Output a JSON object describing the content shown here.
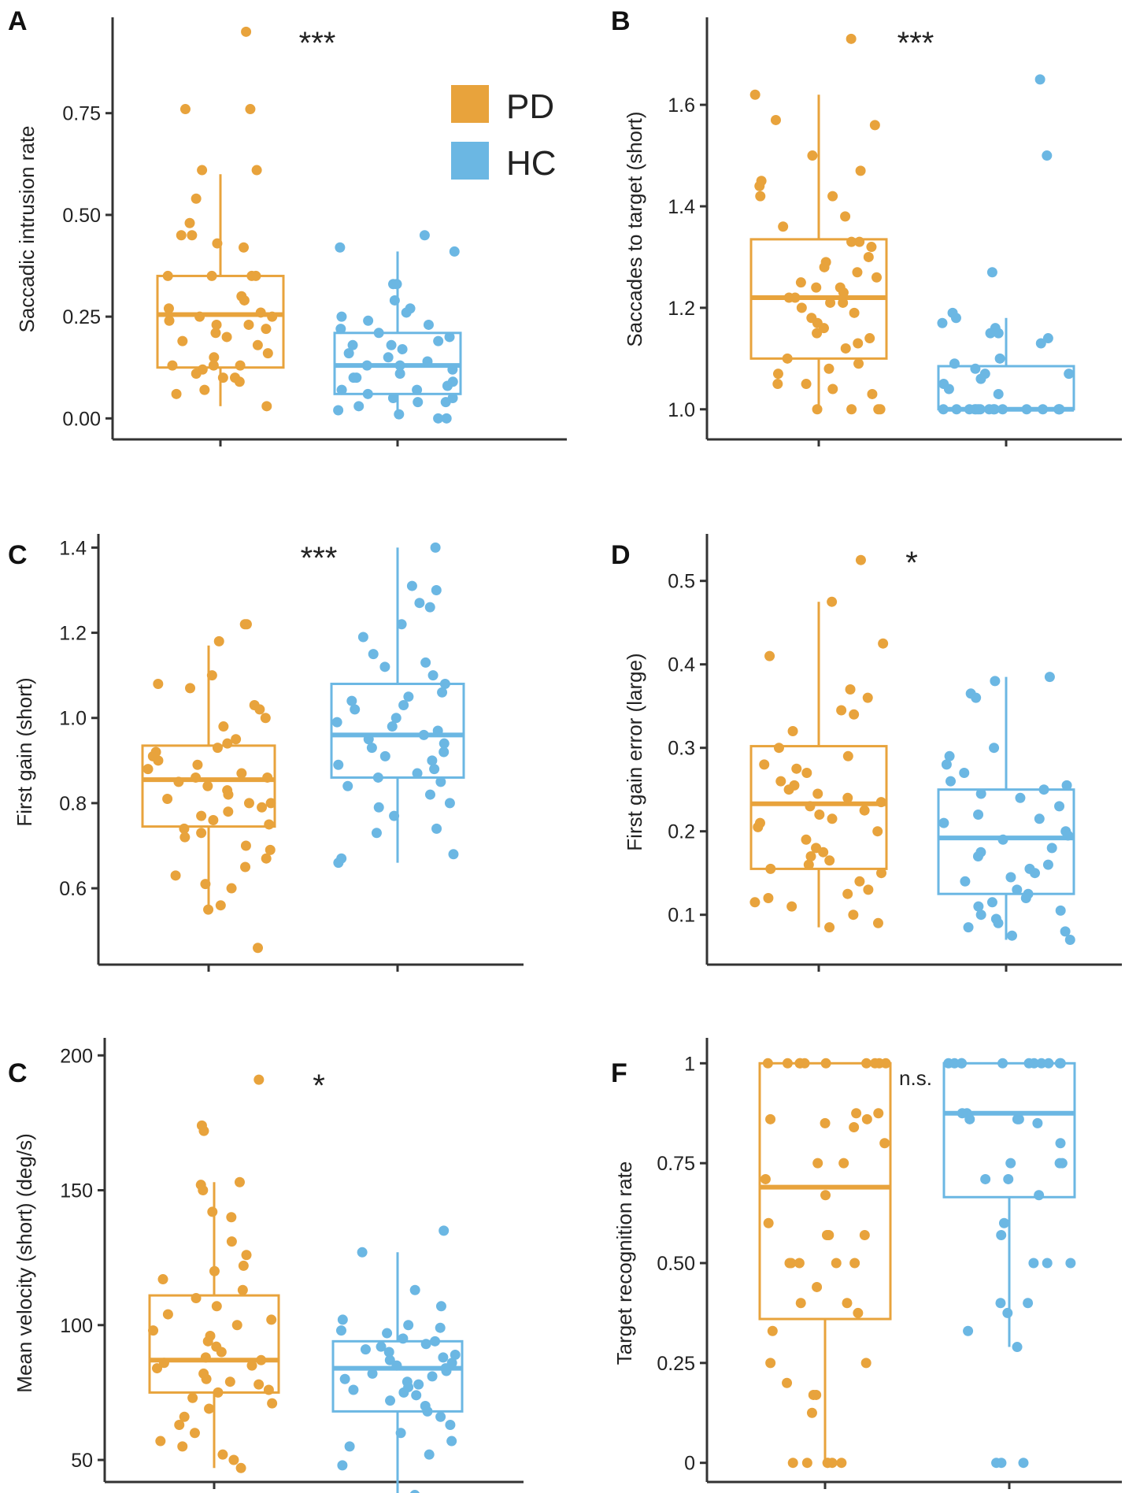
{
  "figure": {
    "legend": [
      {
        "label": "PD",
        "color": "#E8A33C"
      },
      {
        "label": "HC",
        "color": "#6BB7E3"
      }
    ]
  },
  "chart_data": [
    {
      "panel": "A",
      "type": "box",
      "ylabel": "Saccadic intrusion rate",
      "yticks": [
        0.0,
        0.25,
        0.5,
        0.75
      ],
      "ytick_labels": [
        "0.00",
        "0.25",
        "0.50",
        "0.75"
      ],
      "ylim": [
        -0.04,
        0.97
      ],
      "significance": "***",
      "groups": [
        {
          "name": "PD",
          "color": "#E8A33C",
          "box": {
            "q1": 0.125,
            "median": 0.255,
            "q3": 0.35,
            "whisker_low": 0.03,
            "whisker_high": 0.6
          },
          "points": [
            0.95,
            0.76,
            0.76,
            0.61,
            0.61,
            0.54,
            0.48,
            0.45,
            0.45,
            0.43,
            0.42,
            0.35,
            0.35,
            0.35,
            0.35,
            0.3,
            0.29,
            0.27,
            0.26,
            0.25,
            0.25,
            0.24,
            0.23,
            0.23,
            0.22,
            0.21,
            0.2,
            0.19,
            0.18,
            0.16,
            0.15,
            0.13,
            0.13,
            0.13,
            0.12,
            0.11,
            0.1,
            0.1,
            0.09,
            0.07,
            0.06,
            0.03
          ]
        },
        {
          "name": "HC",
          "color": "#6BB7E3",
          "box": {
            "q1": 0.06,
            "median": 0.13,
            "q3": 0.21,
            "whisker_low": 0.0,
            "whisker_high": 0.41
          },
          "points": [
            0.45,
            0.42,
            0.41,
            0.33,
            0.33,
            0.29,
            0.27,
            0.26,
            0.25,
            0.24,
            0.23,
            0.22,
            0.21,
            0.2,
            0.19,
            0.18,
            0.18,
            0.17,
            0.16,
            0.15,
            0.14,
            0.13,
            0.13,
            0.12,
            0.11,
            0.1,
            0.1,
            0.09,
            0.08,
            0.07,
            0.07,
            0.06,
            0.05,
            0.05,
            0.04,
            0.04,
            0.03,
            0.02,
            0.01,
            0.0,
            0.0
          ]
        }
      ]
    },
    {
      "panel": "B",
      "type": "box",
      "ylabel": "Saccades to target (short)",
      "yticks": [
        1.0,
        1.2,
        1.4,
        1.6
      ],
      "ytick_labels": [
        "1.0",
        "1.2",
        "1.4",
        "1.6"
      ],
      "ylim": [
        0.95,
        1.76
      ],
      "significance": "***",
      "groups": [
        {
          "name": "PD",
          "color": "#E8A33C",
          "box": {
            "q1": 1.1,
            "median": 1.22,
            "q3": 1.335,
            "whisker_low": 1.0,
            "whisker_high": 1.62
          },
          "points": [
            1.73,
            1.62,
            1.57,
            1.56,
            1.5,
            1.47,
            1.45,
            1.44,
            1.42,
            1.42,
            1.38,
            1.36,
            1.33,
            1.33,
            1.32,
            1.3,
            1.29,
            1.28,
            1.27,
            1.26,
            1.25,
            1.24,
            1.24,
            1.23,
            1.22,
            1.22,
            1.21,
            1.21,
            1.2,
            1.19,
            1.18,
            1.17,
            1.16,
            1.15,
            1.14,
            1.13,
            1.12,
            1.1,
            1.09,
            1.08,
            1.07,
            1.05,
            1.05,
            1.04,
            1.03,
            1.0,
            1.0,
            1.0,
            1.0
          ]
        },
        {
          "name": "HC",
          "color": "#6BB7E3",
          "box": {
            "q1": 1.0,
            "median": 1.0,
            "q3": 1.085,
            "whisker_low": 1.0,
            "whisker_high": 1.18
          },
          "points": [
            1.65,
            1.5,
            1.27,
            1.19,
            1.18,
            1.17,
            1.16,
            1.15,
            1.15,
            1.14,
            1.13,
            1.1,
            1.09,
            1.08,
            1.07,
            1.07,
            1.06,
            1.05,
            1.04,
            1.03,
            1.0,
            1.0,
            1.0,
            1.0,
            1.0,
            1.0,
            1.0,
            1.0,
            1.0,
            1.0,
            1.0,
            1.0,
            1.0,
            1.0,
            1.0,
            1.0
          ]
        }
      ]
    },
    {
      "panel": "C",
      "type": "box",
      "ylabel": "First gain (short)",
      "yticks": [
        0.6,
        0.8,
        1.0,
        1.2,
        1.4
      ],
      "ytick_labels": [
        "0.6",
        "0.8",
        "1.0",
        "1.2",
        "1.4"
      ],
      "ylim": [
        0.43,
        1.41
      ],
      "significance": "***",
      "groups": [
        {
          "name": "PD",
          "color": "#E8A33C",
          "box": {
            "q1": 0.745,
            "median": 0.855,
            "q3": 0.935,
            "whisker_low": 0.55,
            "whisker_high": 1.17
          },
          "points": [
            1.22,
            1.22,
            1.18,
            1.1,
            1.08,
            1.07,
            1.03,
            1.02,
            1.0,
            0.98,
            0.95,
            0.94,
            0.93,
            0.92,
            0.91,
            0.9,
            0.89,
            0.88,
            0.87,
            0.86,
            0.86,
            0.85,
            0.84,
            0.83,
            0.82,
            0.81,
            0.8,
            0.8,
            0.79,
            0.78,
            0.77,
            0.76,
            0.75,
            0.74,
            0.73,
            0.72,
            0.7,
            0.69,
            0.67,
            0.65,
            0.63,
            0.61,
            0.6,
            0.56,
            0.55,
            0.46
          ]
        },
        {
          "name": "HC",
          "color": "#6BB7E3",
          "box": {
            "q1": 0.86,
            "median": 0.96,
            "q3": 1.08,
            "whisker_low": 0.66,
            "whisker_high": 1.4
          },
          "points": [
            1.4,
            1.31,
            1.3,
            1.27,
            1.26,
            1.22,
            1.19,
            1.15,
            1.13,
            1.12,
            1.1,
            1.08,
            1.06,
            1.05,
            1.04,
            1.03,
            1.02,
            1.0,
            0.99,
            0.98,
            0.97,
            0.96,
            0.95,
            0.94,
            0.93,
            0.92,
            0.91,
            0.9,
            0.89,
            0.88,
            0.87,
            0.86,
            0.85,
            0.84,
            0.82,
            0.8,
            0.79,
            0.77,
            0.74,
            0.73,
            0.68,
            0.67,
            0.66
          ]
        }
      ]
    },
    {
      "panel": "D",
      "type": "box",
      "ylabel": "First gain error (large)",
      "yticks": [
        0.1,
        0.2,
        0.3,
        0.4,
        0.5
      ],
      "ytick_labels": [
        "0.1",
        "0.2",
        "0.3",
        "0.4",
        "0.5"
      ],
      "ylim": [
        0.045,
        0.545
      ],
      "significance": "*",
      "groups": [
        {
          "name": "PD",
          "color": "#E8A33C",
          "box": {
            "q1": 0.155,
            "median": 0.233,
            "q3": 0.302,
            "whisker_low": 0.085,
            "whisker_high": 0.475
          },
          "points": [
            0.525,
            0.475,
            0.425,
            0.41,
            0.37,
            0.36,
            0.345,
            0.34,
            0.32,
            0.3,
            0.29,
            0.28,
            0.275,
            0.27,
            0.26,
            0.255,
            0.25,
            0.245,
            0.24,
            0.235,
            0.23,
            0.225,
            0.22,
            0.215,
            0.21,
            0.205,
            0.2,
            0.19,
            0.18,
            0.175,
            0.17,
            0.165,
            0.16,
            0.155,
            0.15,
            0.14,
            0.13,
            0.125,
            0.12,
            0.115,
            0.11,
            0.1,
            0.09,
            0.085
          ]
        },
        {
          "name": "HC",
          "color": "#6BB7E3",
          "box": {
            "q1": 0.125,
            "median": 0.192,
            "q3": 0.25,
            "whisker_low": 0.07,
            "whisker_high": 0.385
          },
          "points": [
            0.385,
            0.38,
            0.365,
            0.36,
            0.3,
            0.29,
            0.28,
            0.27,
            0.26,
            0.255,
            0.25,
            0.245,
            0.24,
            0.23,
            0.22,
            0.215,
            0.21,
            0.2,
            0.195,
            0.19,
            0.18,
            0.175,
            0.17,
            0.16,
            0.155,
            0.15,
            0.145,
            0.14,
            0.13,
            0.125,
            0.12,
            0.115,
            0.11,
            0.105,
            0.1,
            0.095,
            0.09,
            0.085,
            0.08,
            0.075,
            0.07
          ]
        }
      ]
    },
    {
      "panel": "C",
      "type": "box",
      "ylabel": "Mean velocity (short) (deg/s)",
      "yticks": [
        50,
        100,
        150,
        200
      ],
      "ytick_labels": [
        "50",
        "100",
        "150",
        "200"
      ],
      "ylim": [
        43,
        203
      ],
      "significance": "*",
      "groups": [
        {
          "name": "PD",
          "color": "#E8A33C",
          "box": {
            "q1": 75,
            "median": 87,
            "q3": 111,
            "whisker_low": 47,
            "whisker_high": 153
          },
          "points": [
            191,
            174,
            172,
            153,
            152,
            150,
            142,
            140,
            131,
            126,
            122,
            120,
            117,
            113,
            110,
            107,
            104,
            102,
            100,
            98,
            96,
            94,
            92,
            90,
            88,
            87,
            86,
            85,
            84,
            82,
            80,
            79,
            78,
            76,
            75,
            73,
            71,
            69,
            66,
            63,
            60,
            57,
            55,
            52,
            50,
            47
          ]
        },
        {
          "name": "HC",
          "color": "#6BB7E3",
          "box": {
            "q1": 68,
            "median": 84,
            "q3": 94,
            "whisker_low": 37,
            "whisker_high": 127
          },
          "points": [
            135,
            127,
            113,
            107,
            102,
            100,
            99,
            98,
            97,
            95,
            94,
            93,
            92,
            91,
            90,
            89,
            88,
            87,
            86,
            85,
            84,
            83,
            82,
            81,
            80,
            79,
            78,
            77,
            76,
            75,
            74,
            72,
            70,
            68,
            66,
            63,
            60,
            57,
            55,
            52,
            48,
            37
          ]
        }
      ]
    },
    {
      "panel": "F",
      "type": "box",
      "ylabel": "Target recognition rate",
      "yticks": [
        0,
        0.25,
        0.5,
        0.75,
        1
      ],
      "ytick_labels": [
        "0",
        "0.25",
        "0.50",
        "0.75",
        "1"
      ],
      "ylim": [
        -0.04,
        1.04
      ],
      "significance": "n.s.",
      "groups": [
        {
          "name": "PD",
          "color": "#E8A33C",
          "box": {
            "q1": 0.36,
            "median": 0.69,
            "q3": 1.0,
            "whisker_low": 0.0,
            "whisker_high": 1.0
          },
          "points": [
            1,
            1,
            1,
            1,
            1,
            1,
            1,
            1,
            1,
            1,
            0.875,
            0.875,
            0.86,
            0.86,
            0.85,
            0.84,
            0.8,
            0.75,
            0.75,
            0.71,
            0.67,
            0.6,
            0.57,
            0.57,
            0.57,
            0.5,
            0.5,
            0.5,
            0.5,
            0.5,
            0.44,
            0.4,
            0.4,
            0.375,
            0.33,
            0.25,
            0.25,
            0.2,
            0.17,
            0.17,
            0.125,
            0,
            0,
            0,
            0,
            0,
            0
          ]
        },
        {
          "name": "HC",
          "color": "#6BB7E3",
          "box": {
            "q1": 0.665,
            "median": 0.875,
            "q3": 1.0,
            "whisker_low": 0.29,
            "whisker_high": 1.0
          },
          "points": [
            1,
            1,
            1,
            1,
            1,
            1,
            1,
            1,
            1,
            1,
            1,
            0.875,
            0.875,
            0.86,
            0.86,
            0.86,
            0.85,
            0.8,
            0.75,
            0.75,
            0.75,
            0.71,
            0.71,
            0.67,
            0.6,
            0.57,
            0.5,
            0.5,
            0.5,
            0.4,
            0.4,
            0.375,
            0.33,
            0.29,
            0,
            0,
            0
          ]
        }
      ]
    }
  ]
}
